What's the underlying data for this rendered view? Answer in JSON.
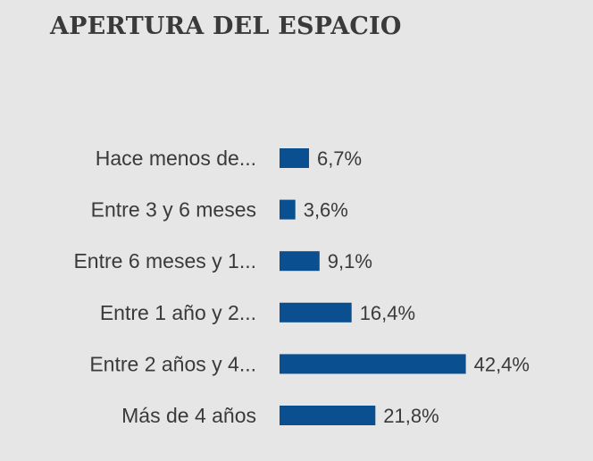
{
  "chart_data": {
    "type": "bar",
    "orientation": "horizontal",
    "title": "APERTURA DEL ESPACIO",
    "categories": [
      "Hace menos de...",
      "Entre 3 y 6 meses",
      "Entre 6 meses y 1...",
      "Entre 1 año y 2...",
      "Entre 2 años y 4...",
      "Más de 4 años"
    ],
    "values": [
      6.7,
      3.6,
      9.1,
      16.4,
      42.4,
      21.8
    ],
    "value_labels": [
      "6,7%",
      "3,6%",
      "9,1%",
      "16,4%",
      "42,4%",
      "21,8%"
    ],
    "bar_color": "#0a4f8f",
    "text_color": "#3a3a3a",
    "grid": false,
    "legend": "none"
  }
}
